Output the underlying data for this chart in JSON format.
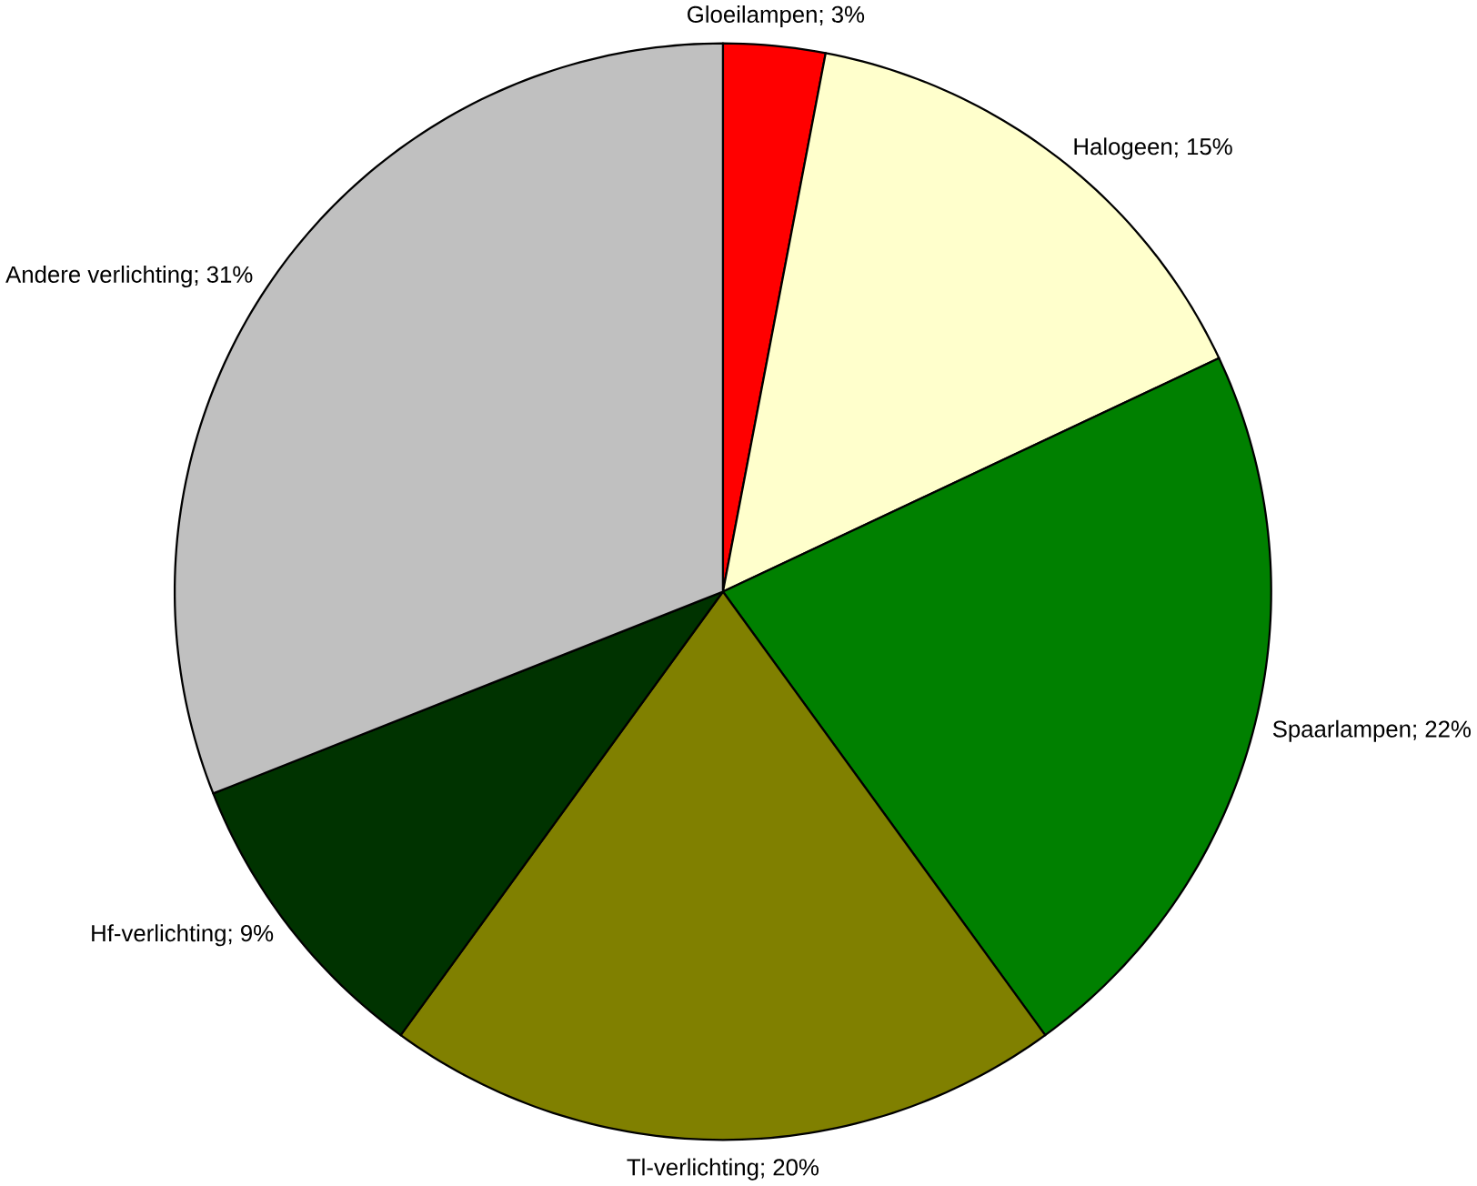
{
  "chart_data": {
    "type": "pie",
    "categories": [
      "Gloeilampen; 3%",
      "Halogeen; 15%",
      "Spaarlampen; 22%",
      "Tl-verlichting; 20%",
      "Hf-verlichting; 9%",
      "Andere verlichting; 31%"
    ],
    "values": [
      3,
      15,
      22,
      20,
      9,
      31
    ],
    "colors": [
      "#ff0000",
      "#ffffcc",
      "#008000",
      "#808000",
      "#003300",
      "#c0c0c0"
    ]
  }
}
